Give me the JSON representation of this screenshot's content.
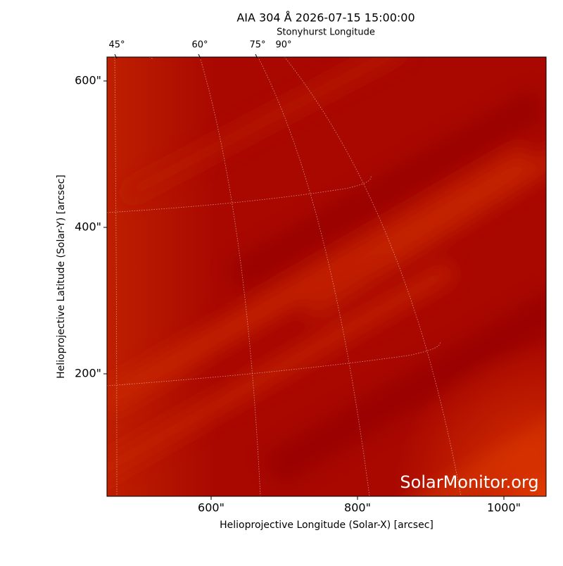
{
  "chart_data": {
    "type": "image",
    "title": "AIA 304 Å 2026-07-15 15:00:00",
    "xlabel": "Helioprojective Longitude (Solar-X) [arcsec]",
    "ylabel": "Helioprojective Latitude (Solar-Y) [arcsec]",
    "x2label": "Stonyhurst Longitude",
    "x2ticks": [
      {
        "value": 45,
        "label": "45°"
      },
      {
        "value": 60,
        "label": "60°"
      },
      {
        "value": 75,
        "label": "75°"
      },
      {
        "value": 90,
        "label": "90°"
      }
    ],
    "xlim": [
      457.7,
      1057.7
    ],
    "ylim": [
      32.7,
      632.7
    ],
    "xticks": [
      {
        "value": 600,
        "label": "600\""
      },
      {
        "value": 800,
        "label": "800\""
      },
      {
        "value": 1000,
        "label": "1000\""
      }
    ],
    "yticks": [
      {
        "value": 200,
        "label": "200\""
      },
      {
        "value": 400,
        "label": "400\""
      },
      {
        "value": 600,
        "label": "600\""
      }
    ],
    "watermark": "SolarMonitor.org"
  }
}
